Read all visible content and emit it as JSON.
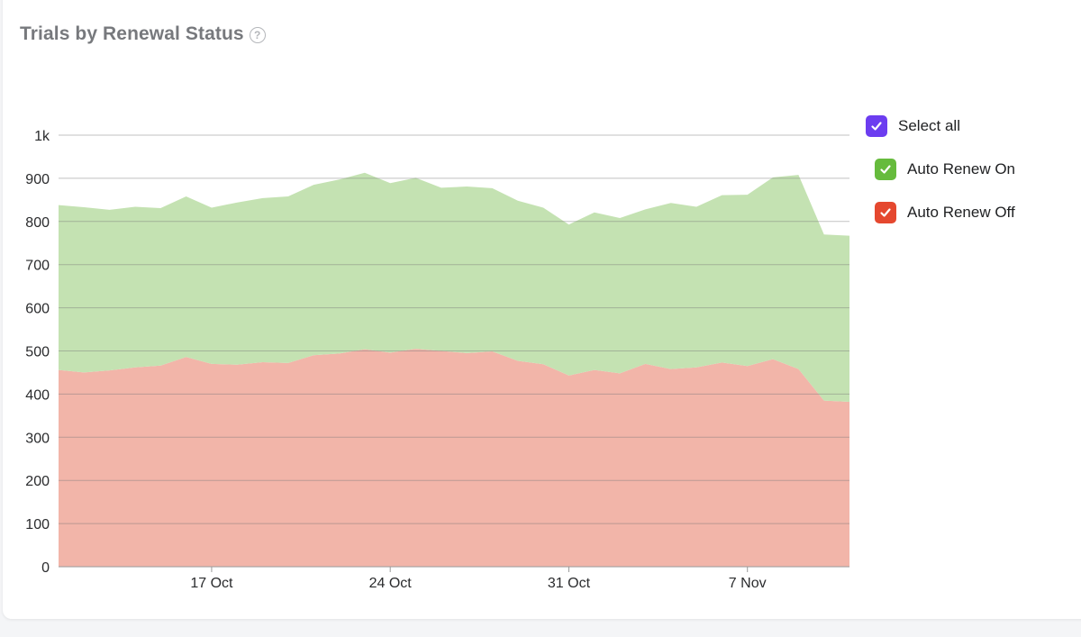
{
  "title": "Trials by Renewal Status",
  "help_icon": "question-circle-icon",
  "legend": {
    "select_all": {
      "label": "Select all",
      "color": "#6c3df0",
      "checked": true
    },
    "items": [
      {
        "label": "Auto Renew On",
        "color": "#66bb3d",
        "checked": true
      },
      {
        "label": "Auto Renew Off",
        "color": "#e5482f",
        "checked": true
      }
    ]
  },
  "chart_data": {
    "type": "area",
    "stacked": true,
    "x": [
      "Oct 11",
      "Oct 12",
      "Oct 13",
      "Oct 14",
      "Oct 15",
      "Oct 16",
      "Oct 17",
      "Oct 18",
      "Oct 19",
      "Oct 20",
      "Oct 21",
      "Oct 22",
      "Oct 23",
      "Oct 24",
      "Oct 25",
      "Oct 26",
      "Oct 27",
      "Oct 28",
      "Oct 29",
      "Oct 30",
      "Oct 31",
      "Nov 1",
      "Nov 2",
      "Nov 3",
      "Nov 4",
      "Nov 5",
      "Nov 6",
      "Nov 7",
      "Nov 8",
      "Nov 9",
      "Nov 10",
      "Nov 11"
    ],
    "series": [
      {
        "name": "Auto Renew Off",
        "color": "#f2b5a9",
        "values": [
          456,
          450,
          455,
          462,
          466,
          486,
          470,
          468,
          474,
          472,
          490,
          494,
          504,
          496,
          505,
          500,
          495,
          499,
          477,
          469,
          443,
          456,
          448,
          470,
          458,
          462,
          473,
          465,
          481,
          458,
          385,
          382
        ]
      },
      {
        "name": "Auto Renew On",
        "color": "#c4e2b2",
        "values": [
          382,
          383,
          372,
          372,
          365,
          372,
          362,
          376,
          380,
          386,
          395,
          403,
          409,
          393,
          396,
          378,
          386,
          378,
          371,
          363,
          350,
          365,
          360,
          358,
          385,
          372,
          388,
          397,
          421,
          450,
          385,
          385
        ]
      }
    ],
    "x_ticks": [
      "17 Oct",
      "24 Oct",
      "31 Oct",
      "7 Nov"
    ],
    "x_tick_index": [
      6,
      13,
      20,
      27
    ],
    "y_ticks": [
      "0",
      "100",
      "200",
      "300",
      "400",
      "500",
      "600",
      "700",
      "800",
      "900",
      "1k"
    ],
    "y_tick_values": [
      0,
      100,
      200,
      300,
      400,
      500,
      600,
      700,
      800,
      900,
      1000
    ],
    "ylim": [
      0,
      1000
    ],
    "grid": true,
    "legend_position": "right"
  }
}
